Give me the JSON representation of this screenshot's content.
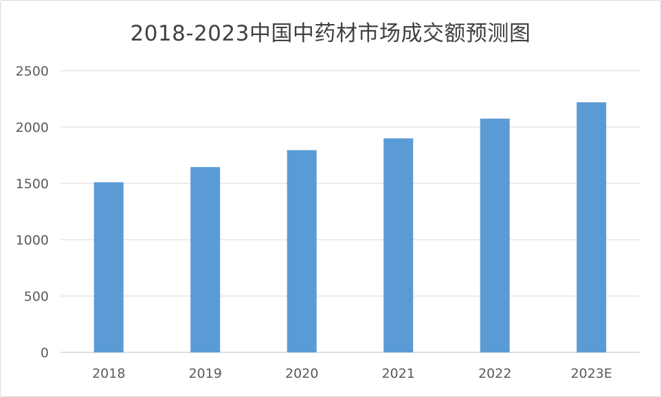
{
  "chart_data": {
    "type": "bar",
    "title": "2018-2023中国中药材市场成交额预测图",
    "xlabel": "",
    "ylabel": "",
    "categories": [
      "2018",
      "2019",
      "2020",
      "2021",
      "2022",
      "2023E"
    ],
    "values": [
      1510,
      1645,
      1795,
      1900,
      2075,
      2220
    ],
    "ylim": [
      0,
      2500
    ],
    "yticks": [
      0,
      500,
      1000,
      1500,
      2000,
      2500
    ],
    "grid": true,
    "legend": "none",
    "bar_color": "#5b9bd5"
  }
}
